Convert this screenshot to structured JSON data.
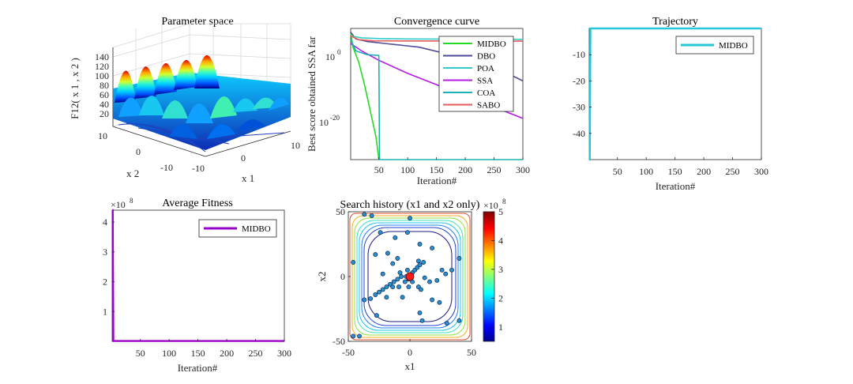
{
  "chart_data": [
    {
      "type": "surface",
      "title": "Parameter space",
      "zlabel": "F12( x 1 , x 2 )",
      "xlabel": "x 1",
      "ylabel": "x 2",
      "zticks": [
        "140",
        "120",
        "100",
        "80",
        "60",
        "40",
        "20"
      ],
      "x1_ticks": [
        "-10",
        "0",
        "10"
      ],
      "x2_ticks": [
        "10",
        "0",
        "-10"
      ]
    },
    {
      "type": "line",
      "title": "Convergence curve",
      "xlabel": "Iteration#",
      "ylabel": "Best score obtained SSA far",
      "xlim": [
        1,
        300
      ],
      "ylim_log10": [
        -32,
        3
      ],
      "xticks": [
        "50",
        "100",
        "150",
        "200",
        "250",
        "300"
      ],
      "yticks": [
        {
          "label": "10",
          "exp": "0",
          "log": 0
        },
        {
          "label": "10",
          "exp": "-20",
          "log": -20
        }
      ],
      "series": [
        {
          "name": "MIDBO",
          "color": "#26d926",
          "log_points": [
            [
              1,
              2
            ],
            [
              5,
              -2
            ],
            [
              15,
              -6
            ],
            [
              25,
              -12
            ],
            [
              35,
              -19
            ],
            [
              45,
              -26
            ],
            [
              50,
              -32
            ]
          ]
        },
        {
          "name": "DBO",
          "color": "#4d4d99",
          "log_points": [
            [
              1,
              2
            ],
            [
              10,
              0.2
            ],
            [
              30,
              -0.5
            ],
            [
              60,
              -1
            ],
            [
              120,
              -2
            ],
            [
              200,
              -5
            ],
            [
              260,
              -8
            ],
            [
              300,
              -11
            ]
          ]
        },
        {
          "name": "POA",
          "color": "#33cccc",
          "log_points": [
            [
              1,
              1
            ],
            [
              20,
              0.5
            ],
            [
              50,
              0.3
            ],
            [
              100,
              0.2
            ],
            [
              300,
              0.1
            ]
          ]
        },
        {
          "name": "SSA",
          "color": "#b31ae6",
          "log_points": [
            [
              1,
              -1
            ],
            [
              20,
              -3
            ],
            [
              50,
              -5.5
            ],
            [
              100,
              -9
            ],
            [
              150,
              -12
            ],
            [
              200,
              -15
            ],
            [
              250,
              -18
            ],
            [
              300,
              -21
            ]
          ]
        },
        {
          "name": "COA",
          "color": "#1ab2b2",
          "log_points": [
            [
              1,
              0
            ],
            [
              10,
              -3
            ],
            [
              30,
              -4
            ],
            [
              50,
              -4.2
            ],
            [
              51,
              -32
            ],
            [
              300,
              -32
            ]
          ]
        },
        {
          "name": "SABO",
          "color": "#e65c5c",
          "log_points": [
            [
              1,
              1
            ],
            [
              15,
              0
            ],
            [
              40,
              -0.3
            ],
            [
              300,
              -0.4
            ]
          ]
        }
      ]
    },
    {
      "type": "line",
      "title": "Trajectory",
      "xlabel": "Iteration#",
      "xlim": [
        1,
        300
      ],
      "ylim": [
        -50,
        0
      ],
      "xticks": [
        "50",
        "100",
        "150",
        "200",
        "250",
        "300"
      ],
      "yticks": [
        "-10",
        "-20",
        "-30",
        "-40"
      ],
      "series": [
        {
          "name": "MIDBO",
          "color": "#26c6d9",
          "points": [
            [
              1,
              -50
            ],
            [
              2,
              -50
            ],
            [
              3,
              0
            ],
            [
              300,
              0
            ]
          ]
        }
      ]
    },
    {
      "type": "line",
      "title": "Average Fitness",
      "xlabel": "Iteration#",
      "y_multiplier": "×10",
      "y_multiplier_exp": "8",
      "xlim": [
        1,
        300
      ],
      "ylim": [
        0,
        4.4
      ],
      "xticks": [
        "50",
        "100",
        "150",
        "200",
        "250",
        "300"
      ],
      "yticks": [
        "4",
        "3",
        "2",
        "1"
      ],
      "series": [
        {
          "name": "MIDBO",
          "color": "#9900cc",
          "points": [
            [
              1,
              4.4
            ],
            [
              2,
              4.4
            ],
            [
              3,
              0.01
            ],
            [
              300,
              0.01
            ]
          ]
        }
      ]
    },
    {
      "type": "scatter",
      "title": "Search history (x1 and x2 only)",
      "xlabel": "x1",
      "ylabel": "x2",
      "xlim": [
        -50,
        50
      ],
      "ylim": [
        -50,
        50
      ],
      "xticks": [
        "-50",
        "0",
        "50"
      ],
      "yticks": [
        "50",
        "0",
        "-50"
      ],
      "colorbar_multiplier": "×10",
      "colorbar_multiplier_exp": "8",
      "colorbar_ticks": [
        "5",
        "4",
        "3",
        "2",
        "1"
      ],
      "colorbar_range": [
        0.5,
        5
      ],
      "points": [
        [
          -31,
          47
        ],
        [
          -37,
          48
        ],
        [
          -24,
          34
        ],
        [
          -12,
          30
        ],
        [
          0,
          45
        ],
        [
          -2,
          34
        ],
        [
          8,
          25
        ],
        [
          -46,
          11
        ],
        [
          -28,
          17
        ],
        [
          -18,
          18
        ],
        [
          40,
          14
        ],
        [
          -10,
          14
        ],
        [
          7,
          12
        ],
        [
          26,
          5
        ],
        [
          -22,
          2
        ],
        [
          -8,
          3
        ],
        [
          -2,
          5
        ],
        [
          -3,
          0
        ],
        [
          -7,
          0
        ],
        [
          -10,
          -2
        ],
        [
          -13,
          -4
        ],
        [
          -16,
          -6
        ],
        [
          -19,
          -8
        ],
        [
          -22,
          -10
        ],
        [
          -25,
          -12
        ],
        [
          -28,
          -14
        ],
        [
          -32,
          -17
        ],
        [
          -14,
          -8
        ],
        [
          -4,
          -4
        ],
        [
          -1,
          -2
        ],
        [
          1,
          1
        ],
        [
          2,
          3
        ],
        [
          4,
          5
        ],
        [
          6,
          7
        ],
        [
          8,
          9
        ],
        [
          12,
          -1
        ],
        [
          16,
          -4
        ],
        [
          22,
          -3
        ],
        [
          29,
          2
        ],
        [
          34,
          5
        ],
        [
          -9,
          -8
        ],
        [
          -19,
          -16
        ],
        [
          2,
          -4
        ],
        [
          7,
          -8
        ],
        [
          -1,
          -8
        ],
        [
          18,
          -18
        ],
        [
          -37,
          -18
        ],
        [
          -27,
          -30
        ],
        [
          8,
          -28
        ],
        [
          10,
          -34
        ],
        [
          30,
          -36
        ],
        [
          40,
          -34
        ],
        [
          -6,
          -16
        ],
        [
          -41,
          -46
        ],
        [
          -46,
          -46
        ],
        [
          11,
          11
        ],
        [
          18,
          22
        ],
        [
          9,
          -10
        ],
        [
          24,
          -20
        ],
        [
          -14,
          10
        ]
      ],
      "best_point": [
        0,
        0
      ]
    }
  ]
}
